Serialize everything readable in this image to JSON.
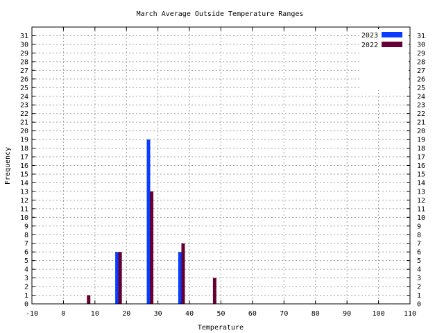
{
  "chart_data": {
    "type": "bar",
    "title": "March Average Outside Temperature Ranges",
    "xlabel": "Temperature",
    "ylabel": "Frequency",
    "xlim": [
      -10,
      110
    ],
    "ylim": [
      0,
      32
    ],
    "xticks": [
      -10,
      0,
      10,
      20,
      30,
      40,
      50,
      60,
      70,
      80,
      90,
      100,
      110
    ],
    "yticks": [
      0,
      1,
      2,
      3,
      4,
      5,
      6,
      7,
      8,
      9,
      10,
      11,
      12,
      13,
      14,
      15,
      16,
      17,
      18,
      19,
      20,
      21,
      22,
      23,
      24,
      25,
      26,
      27,
      28,
      29,
      30,
      31
    ],
    "grid": true,
    "legend_position": "top-right",
    "series": [
      {
        "name": "2023",
        "color": "#0a3cff",
        "x": [
          17,
          27,
          37
        ],
        "values": [
          6,
          19,
          6
        ]
      },
      {
        "name": "2022",
        "color": "#660033",
        "x": [
          8,
          18,
          28,
          38,
          48
        ],
        "values": [
          1,
          6,
          13,
          7,
          3
        ]
      }
    ]
  }
}
